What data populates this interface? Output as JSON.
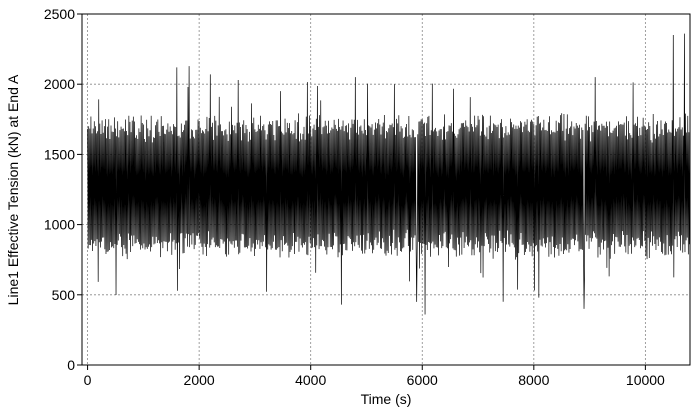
{
  "chart_data": {
    "type": "line",
    "title": "",
    "xlabel": "Time (s)",
    "ylabel": "Line1 Effective Tension (kN) at End A",
    "xlim": [
      -100,
      10800
    ],
    "ylim": [
      0,
      2500
    ],
    "x_ticks": [
      0,
      2000,
      4000,
      6000,
      8000,
      10000
    ],
    "y_ticks": [
      0,
      500,
      1000,
      1500,
      2000,
      2500
    ],
    "grid": true,
    "series": [
      {
        "color": "#000000",
        "mean": 1250,
        "typical_range": [
          850,
          1700
        ],
        "min": 350,
        "max": 2350,
        "x_step": 10,
        "notable_peaks": [
          {
            "x": 1600,
            "y": 2120
          },
          {
            "x": 1800,
            "y": 1980
          },
          {
            "x": 2200,
            "y": 2070
          },
          {
            "x": 2700,
            "y": 2030
          },
          {
            "x": 4800,
            "y": 2050
          },
          {
            "x": 5500,
            "y": 2000
          },
          {
            "x": 9100,
            "y": 2050
          },
          {
            "x": 10500,
            "y": 2350
          },
          {
            "x": 10700,
            "y": 2360
          },
          {
            "x": 6050,
            "y": 360
          },
          {
            "x": 5900,
            "y": 450
          },
          {
            "x": 4550,
            "y": 430
          },
          {
            "x": 8900,
            "y": 400
          }
        ]
      }
    ]
  }
}
